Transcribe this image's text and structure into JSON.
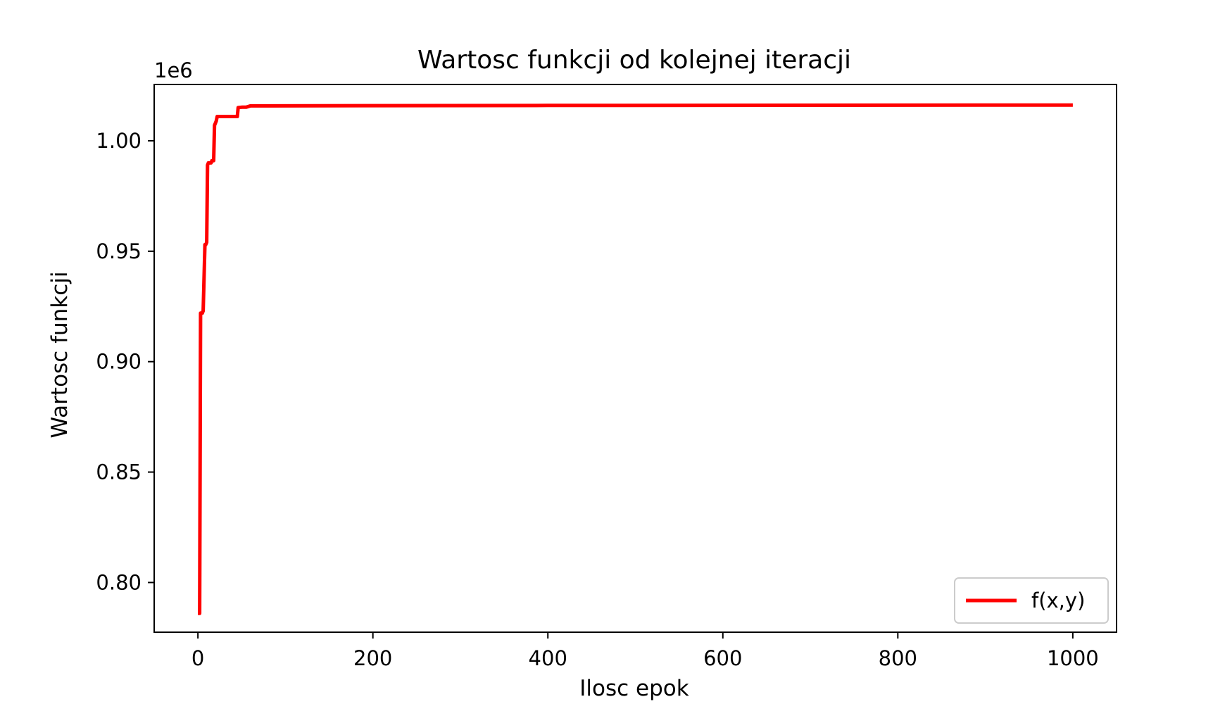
{
  "chart_data": {
    "type": "line",
    "title": "Wartosc funkcji od kolejnej iteracji",
    "xlabel": "Ilosc epok",
    "ylabel": "Wartosc funkcji",
    "offset_label": "1e6",
    "xlim": [
      -50,
      1050
    ],
    "ylim": [
      0.7775,
      1.0255
    ],
    "x_ticks": [
      0,
      200,
      400,
      600,
      800,
      1000
    ],
    "x_tick_labels": [
      "0",
      "200",
      "400",
      "600",
      "800",
      "1000"
    ],
    "y_ticks": [
      0.8,
      0.85,
      0.9,
      0.95,
      1.0
    ],
    "y_tick_labels": [
      "0.80",
      "0.85",
      "0.90",
      "0.95",
      "1.00"
    ],
    "grid": false,
    "legend_position": "bottom-right",
    "series": [
      {
        "name": "f(x,y)",
        "color": "#ff0000",
        "x": [
          0,
          2,
          3,
          5,
          6,
          8,
          9,
          10,
          11,
          12,
          15,
          16,
          18,
          19,
          20,
          21,
          22,
          23,
          25,
          30,
          40,
          45,
          46,
          50,
          55,
          60,
          400,
          1000
        ],
        "y": [
          0.786,
          0.786,
          0.922,
          0.922,
          0.923,
          0.953,
          0.953,
          0.954,
          0.989,
          0.99,
          0.99,
          0.991,
          0.991,
          1.007,
          1.008,
          1.009,
          1.011,
          1.011,
          1.011,
          1.011,
          1.011,
          1.011,
          1.015,
          1.0152,
          1.0152,
          1.0158,
          1.016,
          1.0162
        ]
      }
    ]
  }
}
